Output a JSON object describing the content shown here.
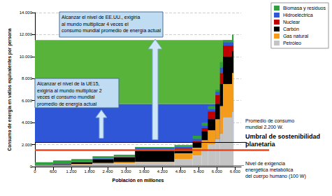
{
  "chart_data": {
    "type": "variable_width_stacked_bar",
    "x_label": "Población en millones",
    "y_label": "Consumo de energía en vatios equivalentes por persona",
    "stacked": true,
    "grid": true,
    "legend": "top-right",
    "xlim": [
      0,
      6800
    ],
    "xticks": [
      0,
      600,
      {
        "value": 1200,
        "label": "1.200"
      },
      {
        "value": 1800,
        "label": "1.800"
      },
      {
        "value": 2400,
        "label": "2.400"
      },
      {
        "value": 3000,
        "label": "3.000"
      },
      {
        "value": 3600,
        "label": "3.600"
      },
      {
        "value": 4200,
        "label": "4.200"
      },
      {
        "value": 4800,
        "label": "4.800"
      },
      {
        "value": 5400,
        "label": "5.400"
      },
      {
        "value": 6000,
        "label": "6.000"
      },
      {
        "value": 6600,
        "label": "6.600"
      }
    ],
    "ylim": [
      0,
      14000
    ],
    "yticks": [
      0,
      {
        "value": 2000,
        "label": "2.000"
      },
      {
        "value": 4000,
        "label": "4.000"
      },
      {
        "value": 6000,
        "label": "6.000"
      },
      {
        "value": 8000,
        "label": "8.000"
      },
      {
        "value": 10000,
        "label": "10.000"
      },
      {
        "value": 12000,
        "label": "12.000"
      },
      {
        "value": 14000,
        "label": "14.000"
      }
    ],
    "populations": [
      600,
      600,
      700,
      700,
      700,
      1300,
      600,
      300,
      200,
      250,
      150,
      100,
      300,
      50
    ],
    "series": [
      {
        "name": "Biomasa y residuos",
        "color": "#2e9e3e",
        "values": [
          250,
          300,
          250,
          200,
          150,
          120,
          150,
          300,
          300,
          300,
          200,
          500,
          200,
          700
        ]
      },
      {
        "name": "Hidroeléctrica",
        "color": "#2f56d6",
        "values": [
          20,
          30,
          40,
          50,
          60,
          100,
          150,
          200,
          200,
          200,
          300,
          500,
          300,
          300
        ]
      },
      {
        "name": "Nuclear",
        "color": "#c00000",
        "values": [
          0,
          0,
          10,
          10,
          20,
          30,
          50,
          100,
          300,
          700,
          800,
          1000,
          1000,
          500
        ]
      },
      {
        "name": "Carbón",
        "color": "#000000",
        "values": [
          30,
          80,
          150,
          350,
          450,
          1100,
          400,
          500,
          800,
          1000,
          1400,
          2000,
          2500,
          2000
        ]
      },
      {
        "name": "Gas natural",
        "color": "#f59b1a",
        "values": [
          20,
          30,
          50,
          80,
          100,
          80,
          500,
          700,
          1000,
          1300,
          1800,
          2500,
          3000,
          3500
        ]
      },
      {
        "name": "Petróleo",
        "color": "#c4c4c4",
        "values": [
          80,
          120,
          180,
          250,
          300,
          350,
          700,
          1000,
          1400,
          2000,
          2500,
          3000,
          4500,
          5000
        ]
      }
    ],
    "levels": [
      {
        "from": 2200,
        "to": 5700,
        "color": "#2f56d6"
      },
      {
        "from": 5700,
        "to": 11500,
        "color": "#57b33a"
      }
    ],
    "reference_lines": [
      {
        "value": 2200,
        "label": "Promedio de consumo\nmundial 2.200 W.",
        "color": "#000000",
        "line_style": "solid"
      },
      {
        "value": 1500,
        "label": "Umbral de sostenibilidad\nplanetaria",
        "color": "#e8461e",
        "line_style": "thick"
      },
      {
        "value": 100,
        "label": "Nivel de exigencia\nenergética metabólica\ndel cuerpo humano (100 W)",
        "color": "#808080",
        "line_style": "solid"
      }
    ],
    "annotations": [
      "Alcanzar el nivel de EE.UU., exigiría\nal mundo multiplicar 4 veces el\nconsumo mundial promedio de energía actual",
      "Alcanzar el nivel de la UE15,\nexigiría al mundo multiplicar 2\nveces el consumo mundial\npromedio de energía actual"
    ]
  }
}
